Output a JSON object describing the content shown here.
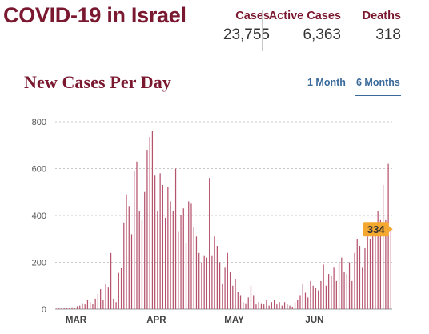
{
  "header": {
    "title": "COVID-19 in Israel",
    "stats": [
      {
        "label": "Cases",
        "value": "23,755"
      },
      {
        "label": "Active Cases",
        "value": "6,363"
      },
      {
        "label": "Deaths",
        "value": "318"
      }
    ]
  },
  "chart_section": {
    "title": "New Cases Per Day",
    "range_options": [
      "1 Month",
      "6 Months"
    ],
    "selected_range": "6 Months"
  },
  "colors": {
    "title": "#7a1830",
    "bar": "#b5526c",
    "link": "#3a6a99",
    "callout": "#f5a830",
    "grid": "#c8c8c8"
  },
  "chart_data": {
    "type": "bar",
    "title": "New Cases Per Day",
    "xlabel": "",
    "ylabel": "",
    "ylim": [
      0,
      800
    ],
    "yticks": [
      0,
      200,
      400,
      600,
      800
    ],
    "month_labels": [
      "MAR",
      "APR",
      "MAY",
      "JUN"
    ],
    "grid": true,
    "values": [
      2,
      3,
      5,
      3,
      6,
      4,
      8,
      7,
      12,
      15,
      25,
      20,
      40,
      30,
      22,
      45,
      65,
      85,
      40,
      110,
      95,
      240,
      45,
      30,
      155,
      175,
      370,
      490,
      440,
      320,
      590,
      630,
      420,
      380,
      500,
      680,
      735,
      760,
      570,
      420,
      580,
      530,
      390,
      520,
      460,
      420,
      600,
      330,
      400,
      430,
      280,
      460,
      450,
      350,
      310,
      240,
      200,
      230,
      220,
      560,
      230,
      310,
      270,
      200,
      110,
      180,
      240,
      160,
      100,
      130,
      75,
      60,
      30,
      25,
      50,
      100,
      60,
      20,
      30,
      25,
      20,
      40,
      15,
      30,
      40,
      20,
      30,
      15,
      30,
      20,
      15,
      10,
      30,
      40,
      60,
      110,
      70,
      50,
      120,
      100,
      90,
      80,
      120,
      190,
      100,
      150,
      140,
      180,
      120,
      200,
      220,
      160,
      150,
      200,
      120,
      240,
      300,
      270,
      180,
      260,
      310,
      300,
      320,
      350,
      420,
      380,
      530,
      380,
      620,
      334
    ],
    "callout_value": "334"
  }
}
